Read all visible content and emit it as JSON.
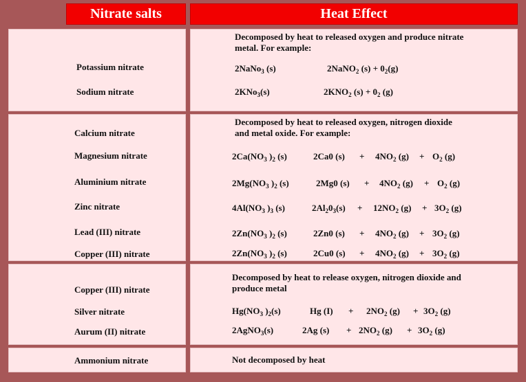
{
  "headers": {
    "left": "Nitrate salts",
    "right": "Heat Effect"
  },
  "group1": {
    "description": "Decomposed by heat  to released oxygen and produce nitrate metal. For example:",
    "salts": [
      "Potassium nitrate",
      "Sodium nitrate"
    ],
    "eq1": {
      "a": "2NaNo",
      "a_sub": "3",
      "a_state": " (s)",
      "b": "2NaNO",
      "b_sub": "2",
      "b_state": "  (s)    +   0",
      "c_sub": "2",
      "c_state": "(g)"
    },
    "eq2": {
      "a": "2KNo",
      "a_sub": "3",
      "a_state": "(s)",
      "b": "2KNO",
      "b_sub": "2",
      "b_state": "  (s)    +   0",
      "c_sub": "2",
      "c_state": " (g)"
    }
  },
  "group2": {
    "description": "Decomposed by heat to released oxygen, nitrogen dioxide and metal oxide. For example:",
    "salts": [
      "Calcium nitrate",
      "Magnesium nitrate",
      "Aluminium nitrate",
      "Zinc nitrate",
      "Lead (III) nitrate",
      "Copper (III) nitrate"
    ],
    "equations": [
      {
        "lhs": "2Ca(NO",
        "lhs_sub": "3",
        "lhs_rest": " )",
        "lhs_sub2": "2",
        "lhs_state": "  (s)",
        "p1": "2Ca0 (s)",
        "plus1": "+",
        "p2": "4NO",
        "p2_sub": "2",
        "p2_state": " (g)",
        "plus2": "+",
        "p3": "O",
        "p3_sub": "2",
        "p3_state": " (g)"
      },
      {
        "lhs": "2Mg(NO",
        "lhs_sub": "3",
        "lhs_rest": " )",
        "lhs_sub2": "2",
        "lhs_state": "  (s)",
        "p1": "2Mg0 (s)",
        "plus1": "+",
        "p2": "4NO",
        "p2_sub": "2",
        "p2_state": " (g)",
        "plus2": "+",
        "p3": "O",
        "p3_sub": "2",
        "p3_state": " (g)"
      },
      {
        "lhs": "4Al(NO",
        "lhs_sub": "3",
        "lhs_rest": " )",
        "lhs_sub2": "3",
        "lhs_state": "  (s)",
        "p1": "2Al",
        "p1_sub": "2",
        "p1_mid": "0",
        "p1_sub2": "3",
        "p1_state": "(s)",
        "plus1": "+",
        "p2": "12NO",
        "p2_sub": "2",
        "p2_state": " (g)",
        "plus2": "+",
        "p3": "3O",
        "p3_sub": "2",
        "p3_state": " (g)"
      },
      {
        "lhs": "2Zn(NO",
        "lhs_sub": "3",
        "lhs_rest": " )",
        "lhs_sub2": "2",
        "lhs_state": "  (s)",
        "p1": "2Zn0 (s)",
        "plus1": "+",
        "p2": "4NO",
        "p2_sub": "2",
        "p2_state": " (g)",
        "plus2": "+",
        "p3": "3O",
        "p3_sub": "2",
        "p3_state": " (g)"
      },
      {
        "lhs": "2Zn(NO",
        "lhs_sub": "3",
        "lhs_rest": " )",
        "lhs_sub2": "2",
        "lhs_state": "  (s)",
        "p1": "2Cu0 (s)",
        "plus1": "+",
        "p2": "4NO",
        "p2_sub": "2",
        "p2_state": " (g)",
        "plus2": "+",
        "p3": "3O",
        "p3_sub": "2",
        "p3_state": " (g)"
      }
    ]
  },
  "group3": {
    "description": "Decomposed by heat to release oxygen, nitrogen dioxide and produce metal",
    "salts": [
      "Copper (III) nitrate",
      "Silver nitrate",
      "Aurum (II) nitrate"
    ],
    "eq1": {
      "lhs": "Hg(NO",
      "lhs_sub": "3",
      "lhs_rest": " )",
      "lhs_sub2": "2",
      "lhs_state": "(s)",
      "p1": "Hg (I)",
      "plus1": "+",
      "p2": "2NO",
      "p2_sub": "2",
      "p2_state": "  (g)",
      "plus2": "+",
      "p3": "3O",
      "p3_sub": "2",
      "p3_state": "  (g)"
    },
    "eq2": {
      "lhs": "2AgNO",
      "lhs_sub": "3",
      "lhs_state": "(s)",
      "p1": "2Ag (s)",
      "plus1": "+",
      "p2": "2NO",
      "p2_sub": "2",
      "p2_state": " (g)",
      "plus2": "+",
      "p3": "3O",
      "p3_sub": "2",
      "p3_state": " (g)"
    }
  },
  "group4": {
    "salt": "Ammonium nitrate",
    "description": "Not decomposed by heat"
  }
}
